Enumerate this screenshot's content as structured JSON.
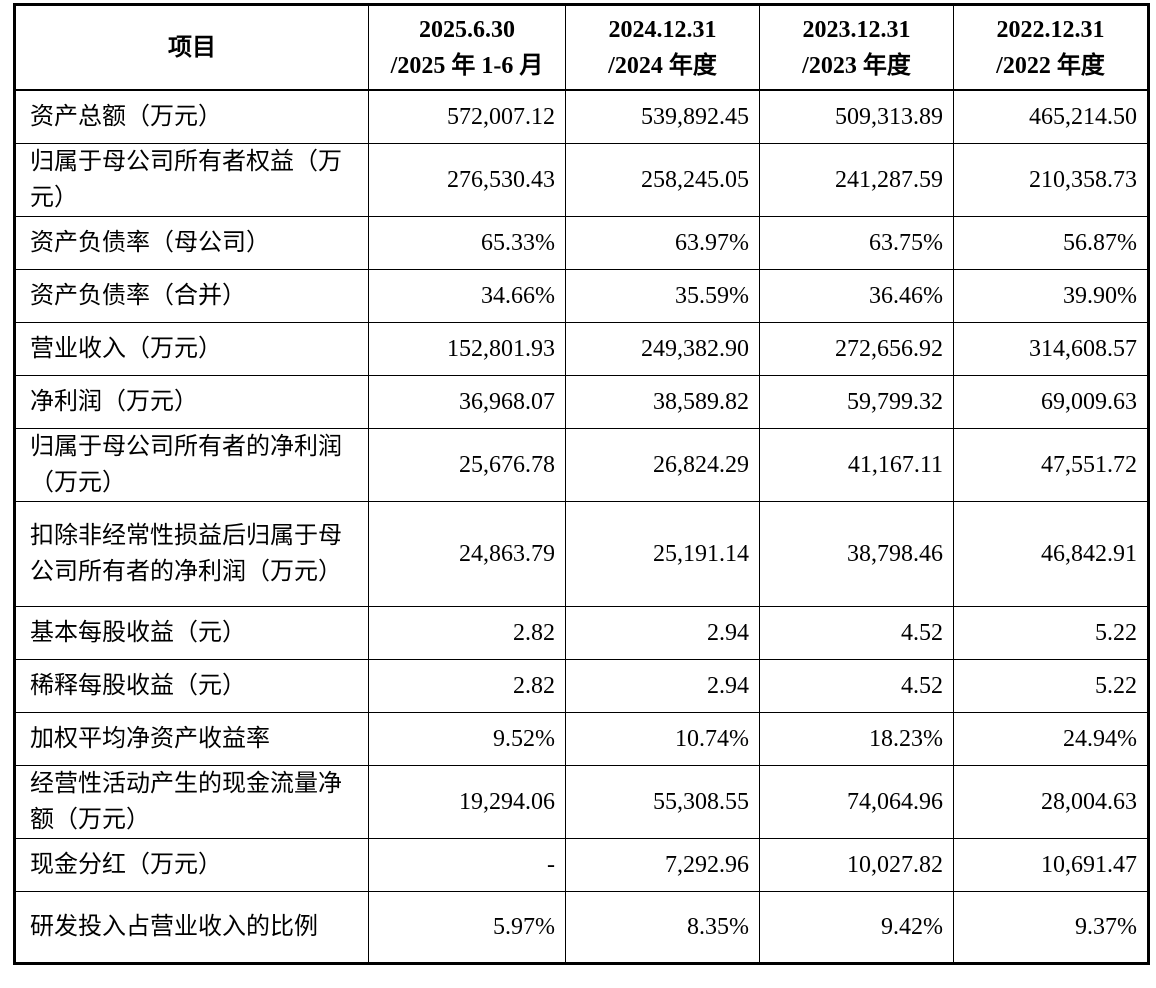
{
  "table": {
    "headers": [
      {
        "lines": [
          "项目"
        ]
      },
      {
        "lines": [
          "2025.6.30",
          "/2025 年 1-6 月"
        ]
      },
      {
        "lines": [
          "2024.12.31",
          "/2024 年度"
        ]
      },
      {
        "lines": [
          "2023.12.31",
          "/2023 年度"
        ]
      },
      {
        "lines": [
          "2022.12.31",
          "/2022 年度"
        ]
      }
    ],
    "rows": [
      {
        "label": "资产总额（万元）",
        "values": [
          "572,007.12",
          "539,892.45",
          "509,313.89",
          "465,214.50"
        ]
      },
      {
        "label": "归属于母公司所有者权益（万元）",
        "values": [
          "276,530.43",
          "258,245.05",
          "241,287.59",
          "210,358.73"
        ]
      },
      {
        "label": "资产负债率（母公司）",
        "values": [
          "65.33%",
          "63.97%",
          "63.75%",
          "56.87%"
        ]
      },
      {
        "label": "资产负债率（合并）",
        "values": [
          "34.66%",
          "35.59%",
          "36.46%",
          "39.90%"
        ]
      },
      {
        "label": "营业收入（万元）",
        "values": [
          "152,801.93",
          "249,382.90",
          "272,656.92",
          "314,608.57"
        ]
      },
      {
        "label": "净利润（万元）",
        "values": [
          "36,968.07",
          "38,589.82",
          "59,799.32",
          "69,009.63"
        ]
      },
      {
        "label": "归属于母公司所有者的净利润（万元）",
        "values": [
          "25,676.78",
          "26,824.29",
          "41,167.11",
          "47,551.72"
        ]
      },
      {
        "label": "扣除非经常性损益后归属于母公司所有者的净利润（万元）",
        "values": [
          "24,863.79",
          "25,191.14",
          "38,798.46",
          "46,842.91"
        ]
      },
      {
        "label": "基本每股收益（元）",
        "values": [
          "2.82",
          "2.94",
          "4.52",
          "5.22"
        ]
      },
      {
        "label": "稀释每股收益（元）",
        "values": [
          "2.82",
          "2.94",
          "4.52",
          "5.22"
        ]
      },
      {
        "label": "加权平均净资产收益率",
        "values": [
          "9.52%",
          "10.74%",
          "18.23%",
          "24.94%"
        ]
      },
      {
        "label": "经营性活动产生的现金流量净额（万元）",
        "values": [
          "19,294.06",
          "55,308.55",
          "74,064.96",
          "28,004.63"
        ]
      },
      {
        "label": "现金分红（万元）",
        "values": [
          "-",
          "7,292.96",
          "10,027.82",
          "10,691.47"
        ]
      },
      {
        "label": "研发投入占营业收入的比例",
        "values": [
          "5.97%",
          "8.35%",
          "9.42%",
          "9.37%"
        ]
      }
    ]
  }
}
